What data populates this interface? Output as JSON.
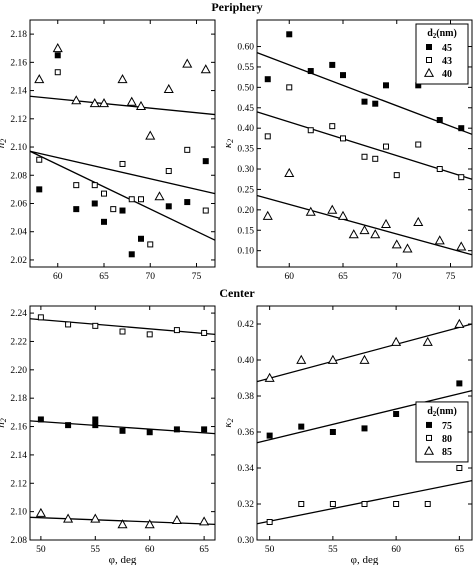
{
  "sections": {
    "top_title": "Periphery",
    "bottom_title": "Center"
  },
  "chart_data": [
    {
      "type": "scatter",
      "panel": "periphery-n2",
      "xlabel": "",
      "ylabel": "n2",
      "xlim": [
        57,
        77
      ],
      "ylim": [
        2.015,
        2.19
      ],
      "xticks": [
        60,
        65,
        70,
        75
      ],
      "yticks": [
        2.02,
        2.04,
        2.06,
        2.08,
        2.1,
        2.12,
        2.14,
        2.16,
        2.18
      ],
      "series": [
        {
          "marker": "square-filled",
          "legend_label": "45",
          "x": [
            58,
            60,
            62,
            64,
            65,
            67,
            68,
            69,
            72,
            74,
            76
          ],
          "y": [
            2.07,
            2.165,
            2.056,
            2.06,
            2.047,
            2.055,
            2.024,
            2.035,
            2.058,
            2.061,
            2.09
          ],
          "fit": [
            [
              57,
              2.097
            ],
            [
              77,
              2.034
            ]
          ]
        },
        {
          "marker": "square-open",
          "legend_label": "43",
          "x": [
            58,
            60,
            62,
            64,
            65,
            66,
            67,
            68,
            69,
            70,
            72,
            74,
            76
          ],
          "y": [
            2.091,
            2.153,
            2.073,
            2.073,
            2.067,
            2.056,
            2.088,
            2.063,
            2.063,
            2.031,
            2.083,
            2.098,
            2.055
          ],
          "fit": [
            [
              57,
              2.097
            ],
            [
              77,
              2.067
            ]
          ]
        },
        {
          "marker": "triangle-open",
          "legend_label": "40",
          "x": [
            58,
            60,
            62,
            64,
            65,
            67,
            68,
            69,
            70,
            71,
            72,
            74,
            76
          ],
          "y": [
            2.148,
            2.17,
            2.133,
            2.131,
            2.131,
            2.148,
            2.132,
            2.129,
            2.108,
            2.065,
            2.141,
            2.159,
            2.155
          ],
          "fit": [
            [
              57,
              2.136
            ],
            [
              77,
              2.123
            ]
          ]
        }
      ]
    },
    {
      "type": "scatter",
      "panel": "periphery-k2",
      "xlabel": "",
      "ylabel": "κ2",
      "xlim": [
        57,
        77
      ],
      "ylim": [
        0.06,
        0.665
      ],
      "xticks": [
        60,
        65,
        70,
        75
      ],
      "yticks": [
        0.1,
        0.15,
        0.2,
        0.25,
        0.3,
        0.35,
        0.4,
        0.45,
        0.5,
        0.55,
        0.6
      ],
      "legend": {
        "title": "d2(nm)",
        "entries": [
          "45",
          "43",
          "40"
        ],
        "position": "top-right"
      },
      "series": [
        {
          "marker": "square-filled",
          "legend_label": "45",
          "x": [
            58,
            60,
            62,
            64,
            65,
            67,
            68,
            69,
            72,
            74,
            76
          ],
          "y": [
            0.52,
            0.63,
            0.54,
            0.555,
            0.53,
            0.465,
            0.46,
            0.505,
            0.505,
            0.42,
            0.4
          ],
          "fit": [
            [
              57,
              0.585
            ],
            [
              77,
              0.385
            ]
          ]
        },
        {
          "marker": "square-open",
          "legend_label": "43",
          "x": [
            58,
            60,
            62,
            64,
            65,
            67,
            68,
            69,
            70,
            72,
            74,
            76
          ],
          "y": [
            0.38,
            0.5,
            0.395,
            0.405,
            0.375,
            0.33,
            0.325,
            0.355,
            0.285,
            0.36,
            0.3,
            0.28
          ],
          "fit": [
            [
              57,
              0.44
            ],
            [
              77,
              0.275
            ]
          ]
        },
        {
          "marker": "triangle-open",
          "legend_label": "40",
          "x": [
            58,
            60,
            62,
            64,
            65,
            66,
            67,
            68,
            69,
            70,
            71,
            72,
            74,
            76
          ],
          "y": [
            0.185,
            0.29,
            0.195,
            0.2,
            0.185,
            0.14,
            0.15,
            0.14,
            0.165,
            0.115,
            0.105,
            0.17,
            0.125,
            0.11
          ],
          "fit": [
            [
              57,
              0.235
            ],
            [
              77,
              0.09
            ]
          ]
        }
      ]
    },
    {
      "type": "scatter",
      "panel": "center-n2",
      "xlabel": "φ, deg",
      "ylabel": "n2",
      "xlim": [
        49,
        66
      ],
      "ylim": [
        2.08,
        2.245
      ],
      "xticks": [
        50,
        55,
        60,
        65
      ],
      "yticks": [
        2.08,
        2.1,
        2.12,
        2.14,
        2.16,
        2.18,
        2.2,
        2.22,
        2.24
      ],
      "series": [
        {
          "marker": "square-open",
          "legend_label": "80",
          "x": [
            50,
            52.5,
            55,
            57.5,
            60,
            62.5,
            65
          ],
          "y": [
            2.237,
            2.232,
            2.231,
            2.227,
            2.225,
            2.228,
            2.226
          ],
          "fit": [
            [
              49,
              2.236
            ],
            [
              66,
              2.225
            ]
          ]
        },
        {
          "marker": "square-filled",
          "legend_label": "75",
          "x": [
            50,
            52.5,
            55,
            55,
            57.5,
            60,
            62.5,
            65
          ],
          "y": [
            2.165,
            2.161,
            2.165,
            2.161,
            2.157,
            2.156,
            2.158,
            2.158
          ],
          "fit": [
            [
              49,
              2.164
            ],
            [
              66,
              2.155
            ]
          ]
        },
        {
          "marker": "triangle-open",
          "legend_label": "85",
          "x": [
            50,
            52.5,
            55,
            57.5,
            60,
            62.5,
            65
          ],
          "y": [
            2.099,
            2.095,
            2.095,
            2.091,
            2.091,
            2.094,
            2.093
          ],
          "fit": [
            [
              49,
              2.096
            ],
            [
              66,
              2.091
            ]
          ]
        }
      ]
    },
    {
      "type": "scatter",
      "panel": "center-k2",
      "xlabel": "φ, deg",
      "ylabel": "κ2",
      "xlim": [
        49,
        66
      ],
      "ylim": [
        0.3,
        0.43
      ],
      "xticks": [
        50,
        55,
        60,
        65
      ],
      "yticks": [
        0.3,
        0.32,
        0.34,
        0.36,
        0.38,
        0.4,
        0.42
      ],
      "legend": {
        "title": "d2(nm)",
        "entries": [
          "75",
          "80",
          "85"
        ],
        "position": "center-right"
      },
      "series": [
        {
          "marker": "triangle-open",
          "legend_label": "85",
          "x": [
            50,
            52.5,
            55,
            57.5,
            60,
            62.5,
            65
          ],
          "y": [
            0.39,
            0.4,
            0.4,
            0.4,
            0.41,
            0.41,
            0.42
          ],
          "fit": [
            [
              49,
              0.388
            ],
            [
              66,
              0.42
            ]
          ]
        },
        {
          "marker": "square-filled",
          "legend_label": "75",
          "x": [
            50,
            52.5,
            55,
            57.5,
            60,
            62.5,
            65
          ],
          "y": [
            0.358,
            0.363,
            0.36,
            0.362,
            0.37,
            0.368,
            0.387
          ],
          "fit": [
            [
              49,
              0.354
            ],
            [
              66,
              0.383
            ]
          ]
        },
        {
          "marker": "square-open",
          "legend_label": "80",
          "x": [
            50,
            52.5,
            55,
            57.5,
            60,
            62.5,
            65
          ],
          "y": [
            0.31,
            0.32,
            0.32,
            0.32,
            0.32,
            0.32,
            0.34
          ],
          "fit": [
            [
              49,
              0.309
            ],
            [
              66,
              0.333
            ]
          ]
        }
      ]
    }
  ]
}
